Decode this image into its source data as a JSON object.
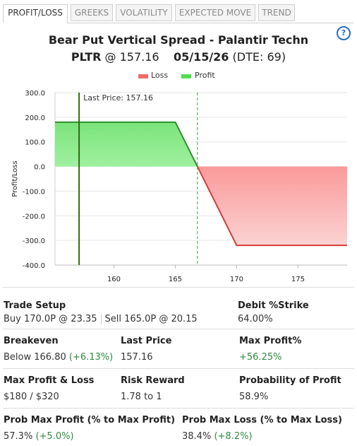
{
  "tabs": [
    {
      "label": "PROFIT/LOSS",
      "active": true
    },
    {
      "label": "GREEKS",
      "active": false
    },
    {
      "label": "VOLATILITY",
      "active": false
    },
    {
      "label": "EXPECTED MOVE",
      "active": false
    },
    {
      "label": "TREND",
      "active": false
    }
  ],
  "header": {
    "title": "Bear Put Vertical Spread - Palantir Techn",
    "symbol": "PLTR",
    "at_price": "@ 157.16",
    "expiry": "05/15/26",
    "dte": "(DTE: 69)",
    "help_glyph": "?"
  },
  "legend": {
    "loss": "Loss",
    "profit": "Profit"
  },
  "colors": {
    "loss": "#f06a6a",
    "profit": "#4fe04f",
    "accent": "#2a6cb7",
    "positive": "#2e8a3e"
  },
  "chart_data": {
    "type": "area",
    "ylabel": "Profit/Loss",
    "xlabel": "",
    "xlim": [
      155.2,
      179.0
    ],
    "ylim": [
      -400,
      300
    ],
    "yticks": [
      "300.0",
      "200.0",
      "100.0",
      "0.0",
      "-100.0",
      "-200.0",
      "-300.0",
      "-400.0"
    ],
    "ytick_values": [
      300,
      200,
      100,
      0,
      -100,
      -200,
      -300,
      -400
    ],
    "xticks": [
      "160",
      "165",
      "170",
      "175"
    ],
    "xtick_values": [
      160,
      165,
      170,
      175
    ],
    "series": [
      {
        "name": "Profit",
        "x": [
          155.2,
          165.0,
          166.8
        ],
        "y": [
          180,
          180,
          0
        ]
      },
      {
        "name": "Loss",
        "x": [
          166.8,
          170.0,
          179.0
        ],
        "y": [
          0,
          -320,
          -320
        ]
      }
    ],
    "last_price": 157.16,
    "last_price_label": "Last Price: 157.16",
    "breakeven": 166.8
  },
  "stats": {
    "trade_setup_label": "Trade Setup",
    "trade_setup_buy": "Buy 170.0P @ 23.35",
    "trade_setup_sell": "Sell 165.0P @ 20.15",
    "debit_strike_label": "Debit %Strike",
    "debit_strike_value": "64.00%",
    "breakeven_label": "Breakeven",
    "breakeven_value": "Below 166.80",
    "breakeven_change": "(+6.13%)",
    "last_price_label": "Last Price",
    "last_price_value": "157.16",
    "max_profit_pct_label": "Max Profit%",
    "max_profit_pct_value": "+56.25%",
    "max_pl_label": "Max Profit & Loss",
    "max_pl_value": "$180 / $320",
    "risk_reward_label": "Risk Reward",
    "risk_reward_value": "1.78 to 1",
    "prob_profit_label": "Probability of Profit",
    "prob_profit_value": "58.9%",
    "prob_max_profit_label": "Prob Max Profit (% to Max Profit)",
    "prob_max_profit_value": "57.3%",
    "prob_max_profit_change": "(+5.0%)",
    "prob_max_loss_label": "Prob Max Loss (% to Max Loss)",
    "prob_max_loss_value": "38.4%",
    "prob_max_loss_change": "(+8.2%)"
  }
}
